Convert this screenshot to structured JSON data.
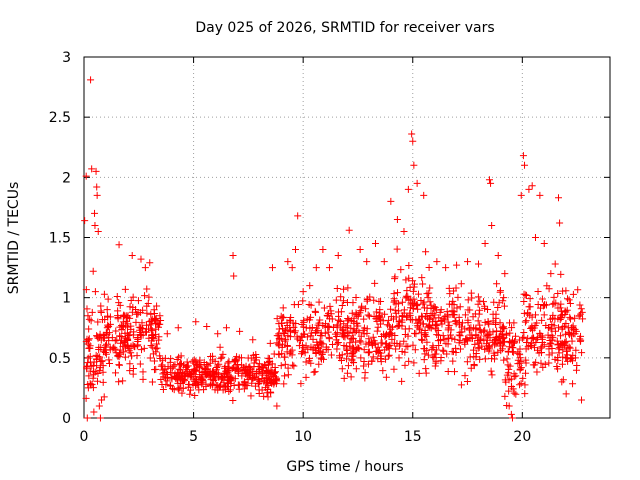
{
  "chart_data": {
    "type": "scatter",
    "title": "Day 025 of 2026, SRMTID for receiver vars",
    "xlabel": "GPS time / hours",
    "ylabel": "SRMTID / TECUs",
    "xlim": [
      0,
      24
    ],
    "ylim": [
      0,
      3
    ],
    "x_ticks": [
      0,
      5,
      10,
      15,
      20
    ],
    "x_tick_labels": [
      "0",
      "5",
      "10",
      "15",
      "20"
    ],
    "y_ticks": [
      0,
      0.5,
      1,
      1.5,
      2,
      2.5,
      3
    ],
    "y_tick_labels": [
      "0",
      "0.5",
      "1",
      "1.5",
      "2",
      "2.5",
      "3"
    ],
    "grid": true,
    "marker": "+",
    "marker_color": "#ff0000",
    "series": [
      {
        "name": "SRMTID",
        "points": [
          [
            0.03,
            1.64
          ],
          [
            0.1,
            2.01
          ],
          [
            0.18,
            0.85
          ],
          [
            0.22,
            0.35
          ],
          [
            0.28,
            0.6
          ],
          [
            0.3,
            2.81
          ],
          [
            0.35,
            2.07
          ],
          [
            0.42,
            1.22
          ],
          [
            0.48,
            1.7
          ],
          [
            0.5,
            1.6
          ],
          [
            0.55,
            2.05
          ],
          [
            0.58,
            1.92
          ],
          [
            0.6,
            1.85
          ],
          [
            0.65,
            1.55
          ],
          [
            0.52,
            1.05
          ],
          [
            0.45,
            0.05
          ],
          [
            0.7,
            0.1
          ],
          [
            0.75,
            0.0
          ],
          [
            0.8,
            0.15
          ],
          [
            0.15,
            0.0
          ],
          [
            0.2,
            0.25
          ],
          [
            1.6,
            1.44
          ],
          [
            2.2,
            1.35
          ],
          [
            2.6,
            1.32
          ],
          [
            3.0,
            1.29
          ],
          [
            2.8,
            1.25
          ],
          [
            3.2,
            0.9
          ],
          [
            3.8,
            0.7
          ],
          [
            4.3,
            0.75
          ],
          [
            5.1,
            0.8
          ],
          [
            5.6,
            0.76
          ],
          [
            6.1,
            0.7
          ],
          [
            6.5,
            0.75
          ],
          [
            6.8,
            1.35
          ],
          [
            6.83,
            1.18
          ],
          [
            7.1,
            0.72
          ],
          [
            7.7,
            0.65
          ],
          [
            8.5,
            0.62
          ],
          [
            8.9,
            0.6
          ],
          [
            8.6,
            1.25
          ],
          [
            8.8,
            0.1
          ],
          [
            9.3,
            1.3
          ],
          [
            9.5,
            1.25
          ],
          [
            9.65,
            1.4
          ],
          [
            9.75,
            1.68
          ],
          [
            10.0,
            1.05
          ],
          [
            10.3,
            1.1
          ],
          [
            10.6,
            1.25
          ],
          [
            10.9,
            1.4
          ],
          [
            11.2,
            1.25
          ],
          [
            11.6,
            1.35
          ],
          [
            12.1,
            1.56
          ],
          [
            12.6,
            1.4
          ],
          [
            12.9,
            1.3
          ],
          [
            13.3,
            1.45
          ],
          [
            13.7,
            1.3
          ],
          [
            14.0,
            1.8
          ],
          [
            14.3,
            1.65
          ],
          [
            14.6,
            1.55
          ],
          [
            14.8,
            1.9
          ],
          [
            14.95,
            2.36
          ],
          [
            15.0,
            2.3
          ],
          [
            15.05,
            2.1
          ],
          [
            15.2,
            1.95
          ],
          [
            15.5,
            1.85
          ],
          [
            15.7,
            1.0
          ],
          [
            15.9,
            0.8
          ],
          [
            16.1,
            1.3
          ],
          [
            16.5,
            1.25
          ],
          [
            17.0,
            1.27
          ],
          [
            17.5,
            1.3
          ],
          [
            18.0,
            1.28
          ],
          [
            18.3,
            1.45
          ],
          [
            18.5,
            1.98
          ],
          [
            18.55,
            1.95
          ],
          [
            18.6,
            1.6
          ],
          [
            18.9,
            1.35
          ],
          [
            19.2,
            1.2
          ],
          [
            19.4,
            0.1
          ],
          [
            19.5,
            0.03
          ],
          [
            19.55,
            0.0
          ],
          [
            19.7,
            0.35
          ],
          [
            19.8,
            0.55
          ],
          [
            19.95,
            1.85
          ],
          [
            20.05,
            2.18
          ],
          [
            20.1,
            2.1
          ],
          [
            20.3,
            1.9
          ],
          [
            20.45,
            1.93
          ],
          [
            20.6,
            1.5
          ],
          [
            20.8,
            1.85
          ],
          [
            21.0,
            1.45
          ],
          [
            21.3,
            1.2
          ],
          [
            21.5,
            1.28
          ],
          [
            21.65,
            1.83
          ],
          [
            21.7,
            1.62
          ],
          [
            21.8,
            0.3
          ],
          [
            22.0,
            0.2
          ],
          [
            22.3,
            0.52
          ],
          [
            22.6,
            0.85
          ],
          [
            22.7,
            0.15
          ]
        ]
      }
    ]
  }
}
